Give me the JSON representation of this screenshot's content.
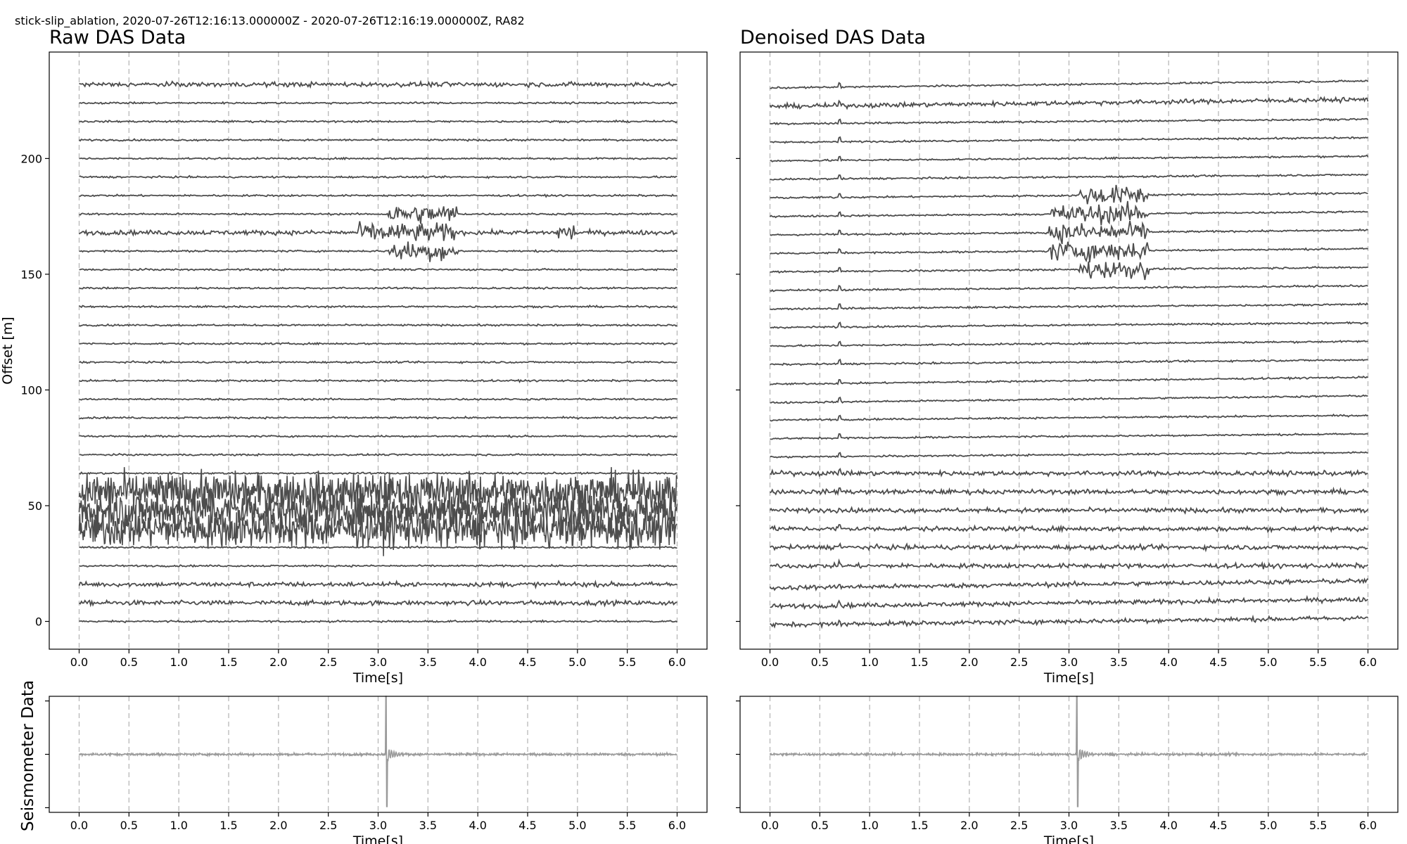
{
  "figure": {
    "suptitle": "stick-slip_ablation, 2020-07-26T12:16:13.000000Z - 2020-07-26T12:16:19.000000Z, RA82",
    "panels": {
      "raw_title": "Raw DAS Data",
      "denoised_title": "Denoised DAS Data",
      "seismometer_ylabel": "Seismometer Data"
    }
  },
  "chart_data": [
    {
      "id": "raw-das",
      "type": "line",
      "title": "Raw DAS Data",
      "xlabel": "Time[s]",
      "ylabel": "Offset [m]",
      "xlim": [
        -0.3,
        6.3
      ],
      "ylim": [
        -12,
        246
      ],
      "xticks": [
        "0.0",
        "0.5",
        "1.0",
        "1.5",
        "2.0",
        "2.5",
        "3.0",
        "3.5",
        "4.0",
        "4.5",
        "5.0",
        "5.5",
        "6.0"
      ],
      "yticks": [
        "0",
        "50",
        "100",
        "150",
        "200"
      ],
      "grid": "vertical dashed at x ticks",
      "trace_color": "#4d4d4d",
      "traces": [
        {
          "offset": 0,
          "level": "quiet"
        },
        {
          "offset": 8,
          "level": "low"
        },
        {
          "offset": 16,
          "level": "low"
        },
        {
          "offset": 24,
          "level": "quiet"
        },
        {
          "offset": 32,
          "level": "quiet"
        },
        {
          "offset": 40,
          "level": "very high"
        },
        {
          "offset": 48,
          "level": "very high"
        },
        {
          "offset": 56,
          "level": "very high"
        },
        {
          "offset": 64,
          "level": "quiet"
        },
        {
          "offset": 72,
          "level": "quiet"
        },
        {
          "offset": 80,
          "level": "quiet"
        },
        {
          "offset": 88,
          "level": "quiet"
        },
        {
          "offset": 96,
          "level": "quiet"
        },
        {
          "offset": 104,
          "level": "quiet"
        },
        {
          "offset": 112,
          "level": "quiet"
        },
        {
          "offset": 120,
          "level": "quiet"
        },
        {
          "offset": 128,
          "level": "quiet"
        },
        {
          "offset": 136,
          "level": "quiet"
        },
        {
          "offset": 144,
          "level": "quiet"
        },
        {
          "offset": 152,
          "level": "quiet"
        },
        {
          "offset": 160,
          "level": "quiet",
          "event": "3.1-3.8 s"
        },
        {
          "offset": 168,
          "level": "low",
          "event": "2.8-3.8 s, 4.8-5.0 s"
        },
        {
          "offset": 176,
          "level": "quiet",
          "event": "3.1-3.8 s"
        },
        {
          "offset": 184,
          "level": "quiet"
        },
        {
          "offset": 192,
          "level": "quiet"
        },
        {
          "offset": 200,
          "level": "quiet"
        },
        {
          "offset": 208,
          "level": "quiet"
        },
        {
          "offset": 216,
          "level": "quiet"
        },
        {
          "offset": 224,
          "level": "quiet"
        },
        {
          "offset": 232,
          "level": "low"
        }
      ]
    },
    {
      "id": "denoised-das",
      "type": "line",
      "title": "Denoised DAS Data",
      "xlabel": "Time[s]",
      "ylabel": "",
      "xlim": [
        -0.3,
        6.3
      ],
      "ylim": [
        -12,
        246
      ],
      "xticks": [
        "0.0",
        "0.5",
        "1.0",
        "1.5",
        "2.0",
        "2.5",
        "3.0",
        "3.5",
        "4.0",
        "4.5",
        "5.0",
        "5.5",
        "6.0"
      ],
      "yticks": [],
      "grid": "vertical dashed at x ticks",
      "trace_color": "#4d4d4d",
      "traces": [
        {
          "offset": 0,
          "level": "low",
          "drift": 3
        },
        {
          "offset": 8,
          "level": "low",
          "drift": 3
        },
        {
          "offset": 16,
          "level": "low",
          "drift": 3
        },
        {
          "offset": 24,
          "level": "low",
          "drift": 0
        },
        {
          "offset": 32,
          "level": "low",
          "drift": 0
        },
        {
          "offset": 40,
          "level": "low",
          "drift": 0
        },
        {
          "offset": 48,
          "level": "low",
          "drift": 0
        },
        {
          "offset": 56,
          "level": "low",
          "drift": 0
        },
        {
          "offset": 64,
          "level": "low",
          "drift": 0
        },
        {
          "offset": 72,
          "level": "quiet",
          "drift": 2
        },
        {
          "offset": 80,
          "level": "quiet",
          "drift": 2
        },
        {
          "offset": 88,
          "level": "quiet",
          "drift": 2
        },
        {
          "offset": 96,
          "level": "quiet",
          "drift": 3
        },
        {
          "offset": 104,
          "level": "quiet",
          "drift": 3
        },
        {
          "offset": 112,
          "level": "quiet",
          "drift": 2
        },
        {
          "offset": 120,
          "level": "quiet",
          "drift": 2
        },
        {
          "offset": 128,
          "level": "quiet",
          "drift": 2
        },
        {
          "offset": 136,
          "level": "quiet",
          "drift": 2
        },
        {
          "offset": 144,
          "level": "quiet",
          "drift": 2
        },
        {
          "offset": 152,
          "level": "quiet",
          "drift": 2,
          "event": "3.1-3.8 s"
        },
        {
          "offset": 160,
          "level": "quiet",
          "drift": 2,
          "event": "2.8-3.8 s"
        },
        {
          "offset": 168,
          "level": "quiet",
          "drift": 2,
          "event": "2.8-3.8 s"
        },
        {
          "offset": 176,
          "level": "quiet",
          "drift": 2,
          "event": "2.8-3.8 s"
        },
        {
          "offset": 184,
          "level": "quiet",
          "drift": 2,
          "event": "3.1-3.8 s"
        },
        {
          "offset": 192,
          "level": "quiet",
          "drift": 2
        },
        {
          "offset": 200,
          "level": "quiet",
          "drift": 2
        },
        {
          "offset": 208,
          "level": "quiet",
          "drift": 2
        },
        {
          "offset": 216,
          "level": "quiet",
          "drift": 2
        },
        {
          "offset": 224,
          "level": "low",
          "drift": 3
        },
        {
          "offset": 232,
          "level": "quiet",
          "drift": 3
        }
      ]
    },
    {
      "id": "seismometer-raw",
      "type": "line",
      "title": "",
      "xlabel": "Time[s]",
      "ylabel": "Seismometer Data",
      "xlim": [
        -0.3,
        6.3
      ],
      "ylim": [
        -1,
        1
      ],
      "xticks": [
        "0.0",
        "0.5",
        "1.0",
        "1.5",
        "2.0",
        "2.5",
        "3.0",
        "3.5",
        "4.0",
        "4.5",
        "5.0",
        "5.5",
        "6.0"
      ],
      "grid": "vertical dashed at x ticks",
      "trace_color": "#9a9a9a",
      "spike": {
        "t": 3.08,
        "peak": 1.0,
        "trough": -0.9
      }
    },
    {
      "id": "seismometer-denoised",
      "type": "line",
      "title": "",
      "xlabel": "Time[s]",
      "ylabel": "",
      "xlim": [
        -0.3,
        6.3
      ],
      "ylim": [
        -1,
        1
      ],
      "xticks": [
        "0.0",
        "0.5",
        "1.0",
        "1.5",
        "2.0",
        "2.5",
        "3.0",
        "3.5",
        "4.0",
        "4.5",
        "5.0",
        "5.5",
        "6.0"
      ],
      "grid": "vertical dashed at x ticks",
      "trace_color": "#9a9a9a",
      "spike": {
        "t": 3.08,
        "peak": 1.0,
        "trough": -0.9
      }
    }
  ]
}
